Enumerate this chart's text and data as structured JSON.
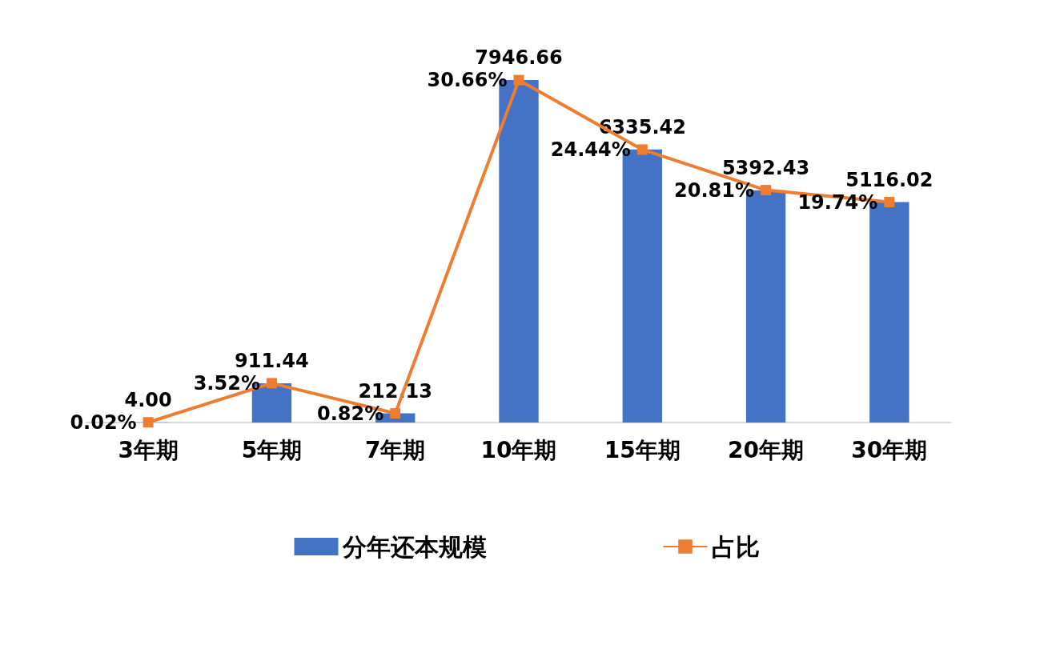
{
  "chart_data": {
    "type": "bar",
    "categories": [
      "3年期",
      "5年期",
      "7年期",
      "10年期",
      "15年期",
      "20年期",
      "30年期"
    ],
    "series": [
      {
        "name": "分年还本规模",
        "color": "#4472c4",
        "values": [
          4.0,
          911.44,
          212.13,
          7946.66,
          6335.42,
          5392.43,
          5116.02
        ],
        "value_labels": [
          "4.00",
          "911.44",
          "212.13",
          "7946.66",
          "6335.42",
          "5392.43",
          "5116.02"
        ]
      },
      {
        "name": "占比",
        "type": "line",
        "axis": "y2",
        "color": "#ed7d31",
        "values": [
          0.02,
          3.52,
          0.82,
          30.66,
          24.44,
          20.81,
          19.74
        ],
        "value_labels": [
          "0.02%",
          "3.52%",
          "0.82%",
          "30.66%",
          "24.44%",
          "20.81%",
          "19.74%"
        ]
      }
    ],
    "marker": "square",
    "legend": "bottom",
    "grid": false
  }
}
